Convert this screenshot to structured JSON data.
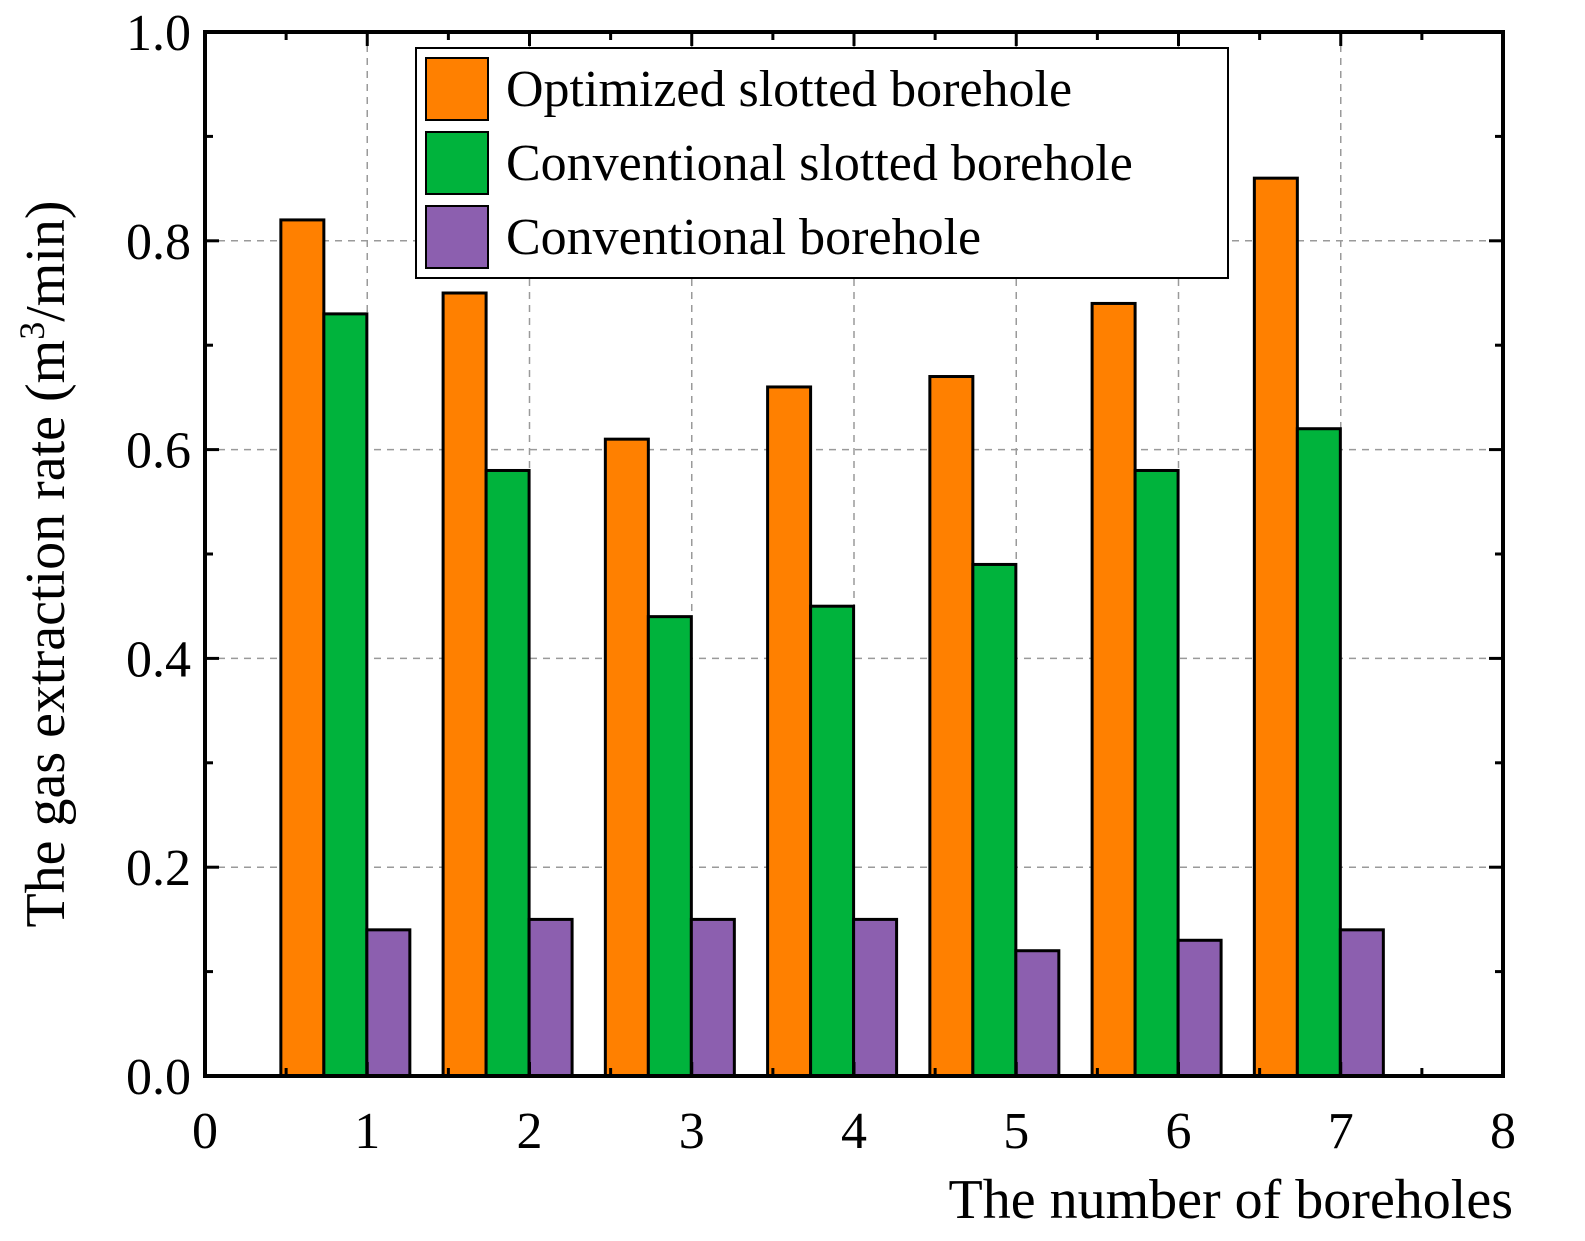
{
  "chart_data": {
    "type": "bar",
    "xlabel": "The number of boreholes",
    "ylabel": "The gas extraction rate (m",
    "ylabel_superscript": "3",
    "ylabel_suffix": "/min)",
    "xlim": [
      0,
      8
    ],
    "ylim": [
      0,
      1.0
    ],
    "x_ticks": [
      "0",
      "1",
      "2",
      "3",
      "4",
      "5",
      "6",
      "7",
      "8"
    ],
    "y_ticks": [
      "0.0",
      "0.2",
      "0.4",
      "0.6",
      "0.8",
      "1.0"
    ],
    "grid": true,
    "legend_position": "top-center",
    "categories": [
      1,
      2,
      3,
      4,
      5,
      6,
      7
    ],
    "series": [
      {
        "name": "Optimized slotted borehole",
        "color": "#FF8000",
        "values": [
          0.82,
          0.75,
          0.61,
          0.66,
          0.67,
          0.74,
          0.86
        ]
      },
      {
        "name": "Conventional slotted borehole",
        "color": "#00B33C",
        "values": [
          0.73,
          0.58,
          0.44,
          0.45,
          0.49,
          0.58,
          0.62
        ]
      },
      {
        "name": "Conventional borehole",
        "color": "#8C5FAF",
        "values": [
          0.14,
          0.15,
          0.15,
          0.15,
          0.12,
          0.13,
          0.14
        ]
      }
    ]
  }
}
